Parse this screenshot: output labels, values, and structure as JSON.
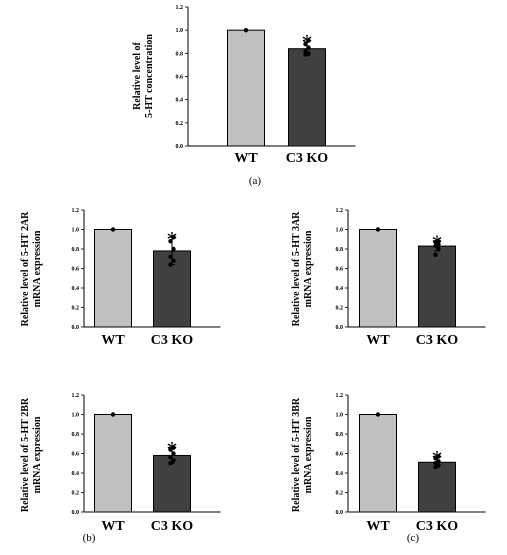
{
  "chart_data": [
    {
      "type": "bar",
      "panel": "(a)",
      "categories": [
        "WT",
        "C3 KO"
      ],
      "values": [
        1.0,
        0.84
      ],
      "errors": [
        0.0,
        0.06
      ],
      "points": [
        [
          1.0
        ],
        [
          0.79,
          0.8,
          0.82,
          0.85,
          0.88,
          0.91
        ]
      ],
      "significance": [
        "",
        "*"
      ],
      "ylabel_lines": [
        "Relative level of",
        "5-HT concentration"
      ],
      "ylim": [
        0,
        1.2
      ],
      "yticks": [
        "0.0",
        "0.2",
        "0.4",
        "0.6",
        "0.8",
        "1.0",
        "1.2"
      ],
      "colors": [
        "#c0c0c0",
        "#404040"
      ]
    },
    {
      "type": "bar",
      "panel": "",
      "categories": [
        "WT",
        "C3 KO"
      ],
      "values": [
        1.0,
        0.78
      ],
      "errors": [
        0.0,
        0.14
      ],
      "points": [
        [
          1.0
        ],
        [
          0.64,
          0.68,
          0.72,
          0.8,
          0.88,
          0.92
        ]
      ],
      "significance": [
        "",
        "*"
      ],
      "ylabel_lines": [
        "Relative level of 5-HT 2AR",
        "mRNA expression"
      ],
      "ylim": [
        0,
        1.2
      ],
      "yticks": [
        "0.0",
        "0.2",
        "0.4",
        "0.6",
        "0.8",
        "1.0",
        "1.2"
      ],
      "colors": [
        "#c0c0c0",
        "#404040"
      ]
    },
    {
      "type": "bar",
      "panel": "",
      "categories": [
        "WT",
        "C3 KO"
      ],
      "values": [
        1.0,
        0.83
      ],
      "errors": [
        0.0,
        0.05
      ],
      "points": [
        [
          1.0
        ],
        [
          0.74,
          0.8,
          0.83,
          0.85,
          0.87,
          0.88
        ]
      ],
      "significance": [
        "",
        "*"
      ],
      "ylabel_lines": [
        "Relative level of 5-HT 3AR",
        "mRNA expression"
      ],
      "ylim": [
        0,
        1.2
      ],
      "yticks": [
        "0.0",
        "0.2",
        "0.4",
        "0.6",
        "0.8",
        "1.0",
        "1.2"
      ],
      "colors": [
        "#c0c0c0",
        "#404040"
      ]
    },
    {
      "type": "bar",
      "panel": "(b)",
      "categories": [
        "WT",
        "C3 KO"
      ],
      "values": [
        1.0,
        0.58
      ],
      "errors": [
        0.0,
        0.08
      ],
      "points": [
        [
          1.0
        ],
        [
          0.5,
          0.53,
          0.56,
          0.6,
          0.64,
          0.66
        ]
      ],
      "significance": [
        "",
        "*"
      ],
      "ylabel_lines": [
        "Relative level of 5-HT 2BR",
        "mRNA expression"
      ],
      "ylim": [
        0,
        1.2
      ],
      "yticks": [
        "0.0",
        "0.2",
        "0.4",
        "0.6",
        "0.8",
        "1.0",
        "1.2"
      ],
      "colors": [
        "#c0c0c0",
        "#404040"
      ]
    },
    {
      "type": "bar",
      "panel": "(c)",
      "categories": [
        "WT",
        "C3 KO"
      ],
      "values": [
        1.0,
        0.51
      ],
      "errors": [
        0.0,
        0.05
      ],
      "points": [
        [
          1.0
        ],
        [
          0.46,
          0.48,
          0.5,
          0.52,
          0.55,
          0.57
        ]
      ],
      "significance": [
        "",
        "*"
      ],
      "ylabel_lines": [
        "Relative level of 5-HT 3BR",
        "mRNA expression"
      ],
      "ylim": [
        0,
        1.2
      ],
      "yticks": [
        "0.0",
        "0.2",
        "0.4",
        "0.6",
        "0.8",
        "1.0",
        "1.2"
      ],
      "colors": [
        "#c0c0c0",
        "#404040"
      ]
    }
  ]
}
